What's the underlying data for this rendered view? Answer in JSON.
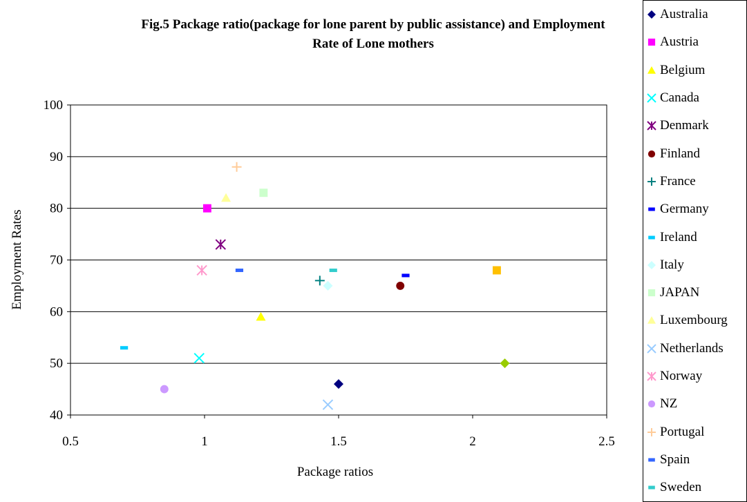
{
  "chart_data": {
    "type": "scatter",
    "title": "Fig.5 Package ratio(package for lone parent by public assistance) and  Employment Rate of Lone mothers",
    "title_lines": [
      "Fig.5 Package ratio(package for lone parent by public assistance) and  Employment",
      "Rate of Lone mothers"
    ],
    "xlabel": "Package ratios",
    "ylabel": "Employment Rates",
    "xlim": [
      0.5,
      2.5
    ],
    "ylim": [
      40,
      100
    ],
    "x_ticks": [
      0.5,
      1,
      1.5,
      2,
      2.5
    ],
    "x_tick_labels": [
      "0.5",
      "1",
      "1.5",
      "2",
      "2.5"
    ],
    "y_ticks": [
      40,
      50,
      60,
      70,
      80,
      90,
      100
    ],
    "y_tick_labels": [
      "40",
      "50",
      "60",
      "70",
      "80",
      "90",
      "100"
    ],
    "grid": "horizontal",
    "legend_position": "right",
    "series": [
      {
        "name": "Australia",
        "marker": "diamond",
        "color": "#000080",
        "x": 1.5,
        "y": 46
      },
      {
        "name": "Austria",
        "marker": "square",
        "color": "#ff00ff",
        "x": 1.01,
        "y": 80
      },
      {
        "name": "Belgium",
        "marker": "triangle",
        "color": "#ffff00",
        "x": 1.21,
        "y": 59
      },
      {
        "name": "Canada",
        "marker": "x",
        "color": "#00ffff",
        "x": 0.98,
        "y": 51
      },
      {
        "name": "Denmark",
        "marker": "star",
        "color": "#800080",
        "x": 1.06,
        "y": 73
      },
      {
        "name": "Finland",
        "marker": "circle",
        "color": "#800000",
        "x": 1.73,
        "y": 65
      },
      {
        "name": "France",
        "marker": "plus",
        "color": "#008080",
        "x": 1.43,
        "y": 66
      },
      {
        "name": "Germany",
        "marker": "dash",
        "color": "#0000ff",
        "x": 1.75,
        "y": 67
      },
      {
        "name": "Ireland",
        "marker": "dash",
        "color": "#00ccff",
        "x": 0.7,
        "y": 53
      },
      {
        "name": "Italy",
        "marker": "diamond",
        "color": "#ccffff",
        "x": 1.46,
        "y": 65
      },
      {
        "name": "JAPAN",
        "marker": "square",
        "color": "#ccffcc",
        "x": 1.22,
        "y": 83
      },
      {
        "name": "Luxembourg",
        "marker": "triangle",
        "color": "#ffff99",
        "x": 1.08,
        "y": 82
      },
      {
        "name": "Netherlands",
        "marker": "x",
        "color": "#99ccff",
        "x": 1.46,
        "y": 42
      },
      {
        "name": "Norway",
        "marker": "star",
        "color": "#ff99cc",
        "x": 0.99,
        "y": 68
      },
      {
        "name": "NZ",
        "marker": "circle",
        "color": "#cc99ff",
        "x": 0.85,
        "y": 45
      },
      {
        "name": "Portugal",
        "marker": "plus",
        "color": "#ffcc99",
        "x": 1.12,
        "y": 88
      },
      {
        "name": "Spain",
        "marker": "dash",
        "color": "#3366ff",
        "x": 1.13,
        "y": 68
      },
      {
        "name": "Sweden",
        "marker": "dash",
        "color": "#33cccc",
        "x": 1.48,
        "y": 68
      }
    ],
    "unlabeled_points": [
      {
        "marker": "square",
        "color": "#ffc000",
        "x": 2.09,
        "y": 68
      },
      {
        "marker": "diamond",
        "color": "#99cc00",
        "x": 2.12,
        "y": 50
      }
    ]
  }
}
